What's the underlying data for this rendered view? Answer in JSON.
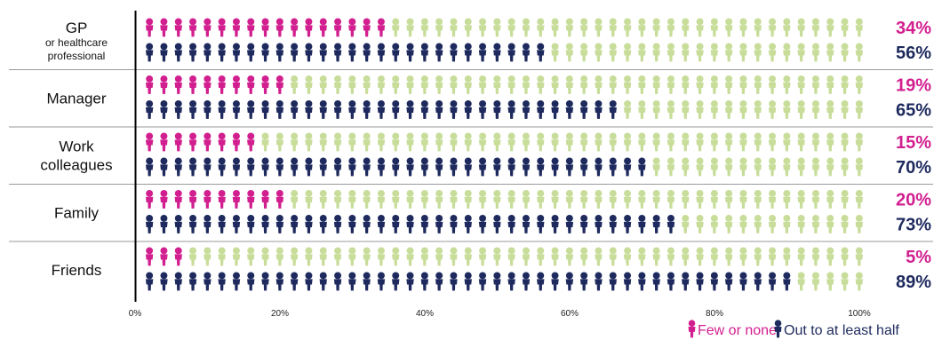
{
  "chart_data": {
    "type": "bar",
    "orientation": "horizontal",
    "style": "pictogram",
    "categories": [
      {
        "lines": [
          "GP",
          "or healthcare",
          "professional"
        ]
      },
      {
        "lines": [
          "Manager"
        ]
      },
      {
        "lines": [
          "Work",
          "colleagues"
        ]
      },
      {
        "lines": [
          "Family"
        ]
      },
      {
        "lines": [
          "Friends"
        ]
      }
    ],
    "series": [
      {
        "name": "Few or none",
        "color": "#d21f8f",
        "values": [
          34,
          19,
          15,
          20,
          5
        ],
        "labels": [
          "34%",
          "19%",
          "15%",
          "20%",
          "5%"
        ]
      },
      {
        "name": "Out to at least half",
        "color": "#1e2a5e",
        "values": [
          56,
          65,
          70,
          73,
          89
        ],
        "labels": [
          "56%",
          "65%",
          "70%",
          "73%",
          "89%"
        ]
      }
    ],
    "background_icon_color": "#c8dd9a",
    "icons_per_row": 50,
    "x_ticks": [
      "0%",
      "20%",
      "40%",
      "60%",
      "80%",
      "100%"
    ],
    "xlim": [
      0,
      100
    ],
    "grid": false,
    "legend_position": "bottom-right"
  },
  "legend": {
    "few_label": "Few or none",
    "half_label": "Out to at least half"
  }
}
